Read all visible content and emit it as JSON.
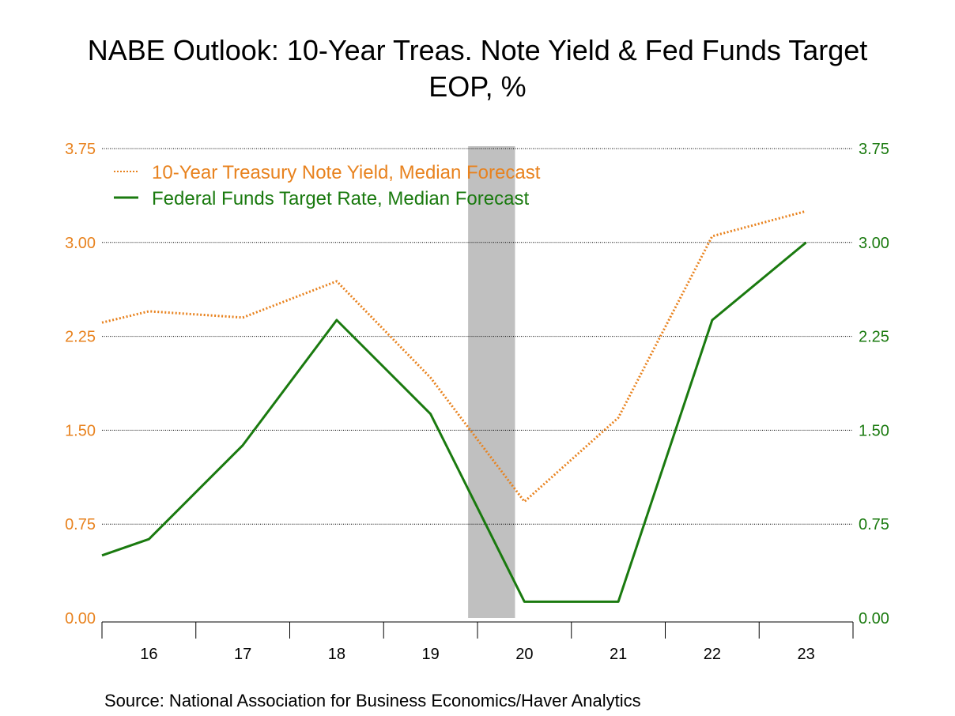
{
  "title_line1": "NABE Outlook: 10-Year Treas. Note Yield & Fed Funds Target",
  "title_line2": "EOP, %",
  "source": "Source:  National Association for Business Economics/Haver Analytics",
  "colors": {
    "treasury": "#e8821e",
    "fedfunds": "#1a7a0f",
    "recession": "#c0c0c0"
  },
  "chart_data": {
    "type": "line",
    "x": [
      2016,
      2017,
      2018,
      2019,
      2020,
      2021,
      2022,
      2023
    ],
    "x_tick_labels": [
      "16",
      "17",
      "18",
      "19",
      "20",
      "21",
      "22",
      "23"
    ],
    "series": [
      {
        "name": "10-Year Treasury Note Yield, Median Forecast",
        "style": "dotted",
        "x": [
          2015.5,
          2016,
          2017,
          2018,
          2019,
          2020,
          2021,
          2022,
          2023
        ],
        "values": [
          2.36,
          2.45,
          2.4,
          2.69,
          1.92,
          0.93,
          1.6,
          3.05,
          3.25
        ]
      },
      {
        "name": "Federal Funds Target Rate, Median Forecast",
        "style": "solid",
        "x": [
          2015.5,
          2016,
          2017,
          2018,
          2019,
          2020,
          2021,
          2022,
          2023
        ],
        "values": [
          0.5,
          0.63,
          1.38,
          2.38,
          1.63,
          0.13,
          0.13,
          2.38,
          3.0
        ]
      }
    ],
    "y_left": {
      "ylim": [
        0,
        3.75
      ],
      "ticks": [
        "0.00",
        "0.75",
        "1.50",
        "2.25",
        "3.00",
        "3.75"
      ]
    },
    "y_right": {
      "ylim": [
        0,
        3.75
      ],
      "ticks": [
        "0.00",
        "0.75",
        "1.50",
        "2.25",
        "3.00",
        "3.75"
      ]
    },
    "recession_shading": {
      "start": 2019.4,
      "end": 2019.9
    },
    "grid": "horizontal dotted",
    "legend_placement": "top-left"
  }
}
